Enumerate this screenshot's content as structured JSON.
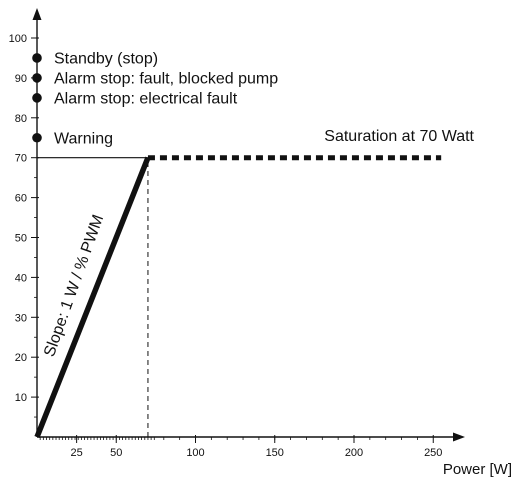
{
  "chart_data": {
    "type": "line",
    "xlabel": "Power [W]",
    "ylabel": "",
    "xlim": [
      0,
      270
    ],
    "ylim": [
      0,
      108
    ],
    "x_ticks_major": [
      25,
      50,
      100,
      150,
      200,
      250
    ],
    "y_ticks_major": [
      10,
      20,
      30,
      40,
      50,
      60,
      70,
      80,
      90,
      100
    ],
    "grid": false,
    "series": [
      {
        "x": [
          0,
          70
        ],
        "y": [
          0,
          70
        ],
        "style": "solid-thick"
      },
      {
        "x": [
          70,
          255
        ],
        "y": [
          70,
          70
        ],
        "style": "dashed-thick"
      }
    ],
    "reference_lines": [
      {
        "orientation": "horizontal",
        "value": 70,
        "from": 0,
        "to": 70,
        "style": "solid-thin"
      },
      {
        "orientation": "vertical",
        "value": 70,
        "from": 0,
        "to": 70,
        "style": "dashed-thin"
      }
    ],
    "markers": [
      {
        "y": 95,
        "label": "Standby (stop)"
      },
      {
        "y": 90,
        "label": "Alarm stop: fault, blocked pump"
      },
      {
        "y": 85,
        "label": "Alarm stop: electrical fault"
      },
      {
        "y": 75,
        "label": "Warning"
      }
    ],
    "annotations": {
      "saturation": "Saturation at 70 Watt",
      "slope": "Slope: 1 W / % PWM"
    }
  }
}
